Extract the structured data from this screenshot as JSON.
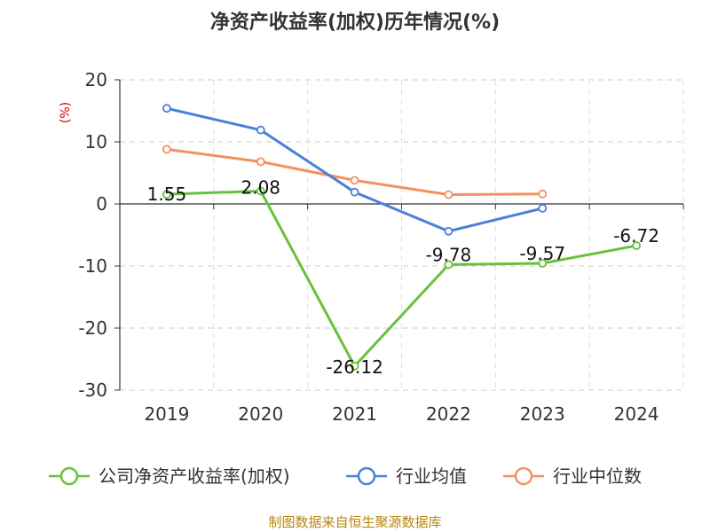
{
  "chart_data": {
    "type": "line",
    "title": "净资产收益率(加权)历年情况(%)",
    "ylabel": "(%)",
    "categories": [
      "2019",
      "2020",
      "2021",
      "2022",
      "2023",
      "2024"
    ],
    "ylim": [
      -30,
      20
    ],
    "yticks": [
      20,
      10,
      0,
      -10,
      -20,
      -30
    ],
    "grid": true,
    "legend_position": "bottom",
    "series": [
      {
        "name": "公司净资产收益率(加权)",
        "color": "#67c23a",
        "values": [
          1.55,
          2.08,
          -26.12,
          -9.78,
          -9.57,
          -6.72
        ],
        "labels": [
          "1.55",
          "2.08",
          "-26.12",
          "-9.78",
          "-9.57",
          "-6.72"
        ]
      },
      {
        "name": "行业均值",
        "color": "#4a7fdc",
        "values": [
          15.4,
          11.9,
          1.9,
          -4.4,
          -0.7,
          null
        ]
      },
      {
        "name": "行业中位数",
        "color": "#f59060",
        "values": [
          8.8,
          6.8,
          3.8,
          1.5,
          1.6,
          null
        ]
      }
    ]
  },
  "footer": {
    "source": "制图数据来自恒生聚源数据库"
  }
}
